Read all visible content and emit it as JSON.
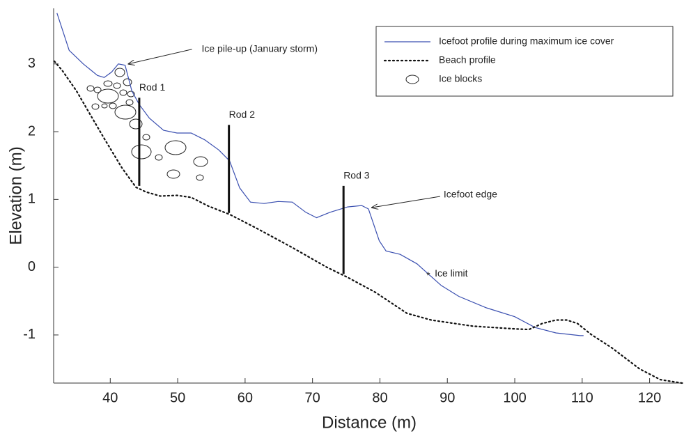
{
  "chart_data": {
    "type": "line",
    "x_label": "Distance (m)",
    "y_label": "Elevation (m)",
    "xlim": [
      31.6,
      125
    ],
    "ylim": [
      -1.71,
      3.82
    ],
    "xticks": [
      40,
      50,
      60,
      70,
      80,
      90,
      100,
      110,
      120
    ],
    "yticks": [
      -1,
      0,
      1,
      2,
      3
    ],
    "series": [
      {
        "name": "Icefoot profile during maximum ice cover",
        "color": "#3a4fb0",
        "style": "solid",
        "x": [
          32.1,
          33.9,
          36.0,
          38.1,
          39.1,
          40.2,
          41.2,
          42.2,
          43.2,
          44.3,
          45.8,
          47.9,
          49.9,
          52.0,
          54.0,
          56.1,
          57.7,
          59.2,
          60.8,
          62.8,
          64.9,
          67.0,
          69.0,
          70.6,
          72.6,
          75.2,
          77.3,
          78.3,
          79.9,
          80.9,
          83.0,
          85.5,
          87.4,
          89.1,
          91.7,
          95.8,
          100.0,
          103.0,
          106.1,
          109.7,
          110.2
        ],
        "values": [
          3.75,
          3.2,
          3.0,
          2.83,
          2.8,
          2.88,
          3.0,
          2.98,
          2.6,
          2.4,
          2.2,
          2.02,
          1.98,
          1.98,
          1.88,
          1.73,
          1.57,
          1.17,
          0.96,
          0.94,
          0.97,
          0.96,
          0.81,
          0.73,
          0.81,
          0.89,
          0.91,
          0.86,
          0.39,
          0.24,
          0.19,
          0.05,
          -0.12,
          -0.27,
          -0.43,
          -0.6,
          -0.73,
          -0.89,
          -0.97,
          -1.01,
          -1.01
        ]
      },
      {
        "name": "Beach profile",
        "color": "#111111",
        "style": "dotted",
        "x": [
          31.7,
          32.9,
          35.0,
          37.1,
          39.1,
          41.7,
          43.8,
          45.3,
          47.4,
          49.9,
          52.0,
          54.6,
          57.7,
          61.8,
          67.0,
          72.1,
          75.2,
          79.3,
          84.0,
          87.6,
          93.8,
          100.0,
          102.1,
          104.1,
          106.1,
          107.7,
          109.3,
          111.3,
          114.4,
          118.5,
          121.6,
          124.8
        ],
        "values": [
          3.04,
          2.9,
          2.6,
          2.24,
          1.9,
          1.47,
          1.18,
          1.11,
          1.05,
          1.06,
          1.03,
          0.9,
          0.78,
          0.57,
          0.29,
          0.0,
          -0.15,
          -0.37,
          -0.68,
          -0.78,
          -0.87,
          -0.91,
          -0.92,
          -0.83,
          -0.78,
          -0.78,
          -0.83,
          -0.99,
          -1.19,
          -1.5,
          -1.66,
          -1.71
        ]
      }
    ],
    "blocks_legend": "Ice blocks",
    "rods": [
      {
        "label": "Rod 1",
        "x": 44.3,
        "bottom": 1.2,
        "top": 2.5
      },
      {
        "label": "Rod 2",
        "x": 57.6,
        "bottom": 0.8,
        "top": 2.1
      },
      {
        "label": "Rod 3",
        "x": 74.6,
        "bottom": -0.1,
        "top": 1.2
      }
    ],
    "annotations": [
      {
        "text": "Ice pile-up (January storm)",
        "x": 42.5,
        "y": 3.0
      },
      {
        "text": "Icefoot edge",
        "x": 78.6,
        "y": 0.88
      },
      {
        "text": "Ice limit",
        "x": 87.3,
        "y": -0.1
      }
    ],
    "legend": "upper right"
  }
}
